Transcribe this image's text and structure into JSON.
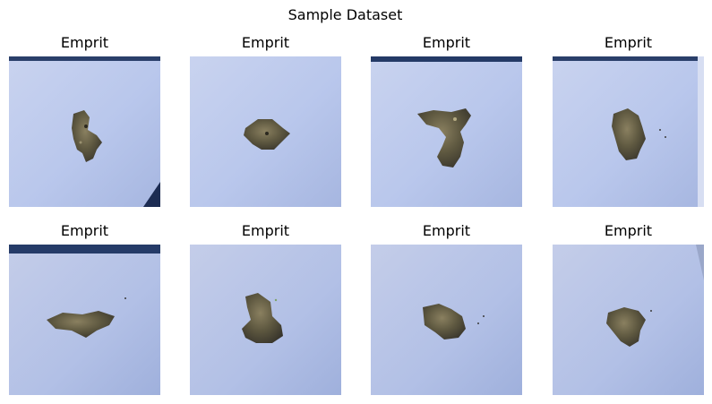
{
  "figure": {
    "title": "Sample Dataset"
  },
  "samples": [
    {
      "label": "Emprit"
    },
    {
      "label": "Emprit"
    },
    {
      "label": "Emprit"
    },
    {
      "label": "Emprit"
    },
    {
      "label": "Emprit"
    },
    {
      "label": "Emprit"
    },
    {
      "label": "Emprit"
    },
    {
      "label": "Emprit"
    }
  ]
}
